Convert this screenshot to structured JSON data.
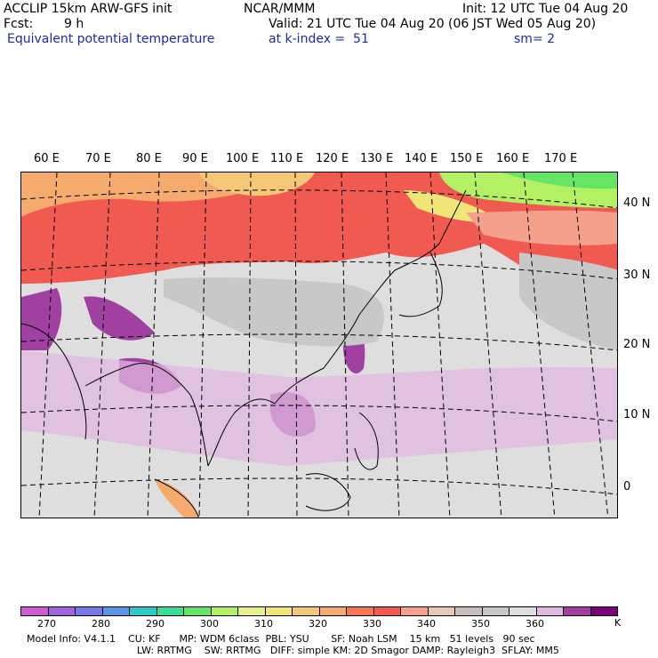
{
  "header": {
    "model": "ACCLIP 15km ARW-GFS init",
    "org": "NCAR/MMM",
    "init": "Init: 12 UTC Tue 04 Aug 20",
    "fcst_label": "Fcst:",
    "fcst_value": "9 h",
    "valid": "Valid: 21 UTC Tue 04 Aug 20 (06 JST Wed 05 Aug 20)",
    "field": "Equivalent potential temperature",
    "level": "at k-index =  51",
    "smooth": "sm= 2"
  },
  "map": {
    "lon_labels": [
      "60 E",
      "70 E",
      "80 E",
      "90 E",
      "100 E",
      "110 E",
      "120 E",
      "130 E",
      "140 E",
      "150 E",
      "160 E",
      "170 E"
    ],
    "lat_labels": [
      "40 N",
      "30 N",
      "20 N",
      "10 N",
      "0"
    ]
  },
  "colorbar": {
    "unit": "K",
    "ticks": [
      "270",
      "280",
      "290",
      "300",
      "310",
      "320",
      "330",
      "340",
      "350",
      "360"
    ],
    "colors": [
      "#d05ad0",
      "#a064dc",
      "#7878e6",
      "#5a96e6",
      "#32c8c8",
      "#3cdc96",
      "#64e664",
      "#b4f064",
      "#e6f08c",
      "#f0e678",
      "#f5c878",
      "#f5aa6e",
      "#f57850",
      "#f05a50",
      "#f5a08c",
      "#e6c8b4",
      "#c8bebe",
      "#c8c8c8",
      "#dedede",
      "#e0b8e0",
      "#a040a0",
      "#780078"
    ]
  },
  "footer": {
    "line1": "Model Info: V4.1.1    CU: KF      MP: WDM 6class  PBL: YSU       SF: Noah LSM    15 km   51 levels   90 sec",
    "line2": "LW: RRTMG    SW: RRTMG   DIFF: simple KM: 2D Smagor DAMP: Rayleigh3  SFLAY: MM5"
  }
}
